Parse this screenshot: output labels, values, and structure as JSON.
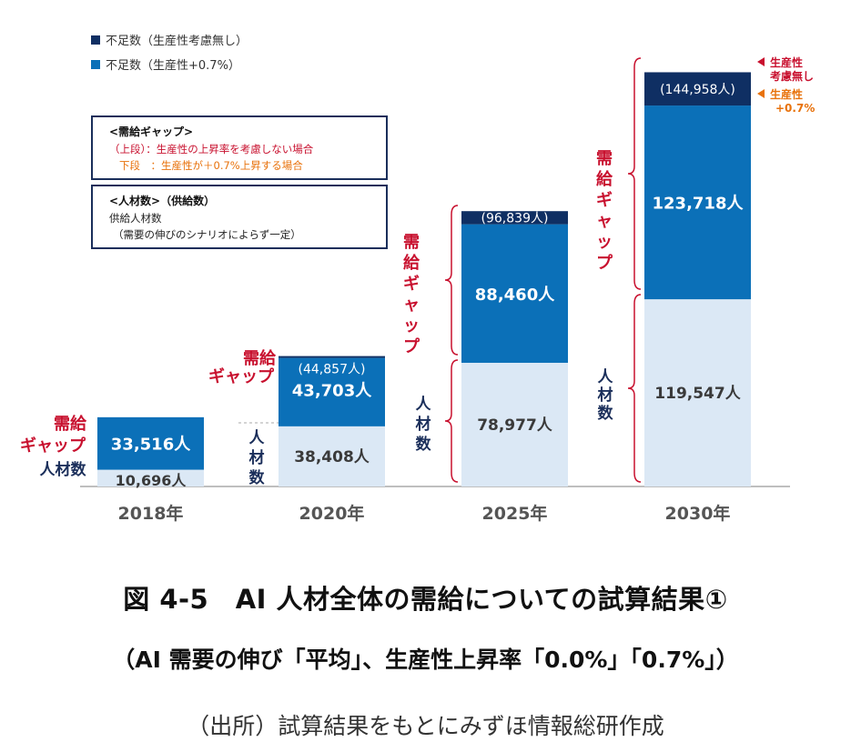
{
  "chart_data": {
    "type": "bar",
    "stacked": true,
    "categories": [
      "2018年",
      "2020年",
      "2025年",
      "2030年"
    ],
    "series": [
      {
        "name": "人材数",
        "values": [
          10696,
          38408,
          78977,
          119547
        ],
        "labels": [
          "10,696人",
          "38,408人",
          "78,977人",
          "119,547人"
        ]
      },
      {
        "name": "不足数（生産性+0.7%）",
        "values": [
          33516,
          43703,
          88460,
          123718
        ],
        "labels": [
          "33,516人",
          "43,703人",
          "88,460人",
          "123,718人"
        ]
      },
      {
        "name": "不足数（生産性考慮無し）",
        "values": [
          null,
          1154,
          8379,
          21240
        ],
        "labels": [
          "",
          "(44,857人)",
          "(96,839人)",
          "(144,958人)"
        ]
      }
    ],
    "colors": {
      "supply": "#dbe8f5",
      "gap": "#0b70b8",
      "gap_extra": "#0f2f63",
      "gap_text": "#c8102e",
      "supply_text": "#1a2e5a",
      "orange": "#e8720c"
    },
    "legend": {
      "position": "top-left",
      "items": [
        {
          "label": "不足数（生産性考慮無し）",
          "color": "#0f2f63"
        },
        {
          "label": "不足数（生産性+0.7%）",
          "color": "#0b70b8"
        }
      ]
    },
    "notes": {
      "gap_title": "<需給ギャップ>",
      "gap_line1": "（上段）：生産性の上昇率を考慮しない場合",
      "gap_line2": "下段　：生産性が＋0.7%上昇する場合",
      "supply_title": "<人材数>（供給数）",
      "supply_line1": "供給人材数",
      "supply_line2": "（需要の伸びのシナリオによらず一定）"
    },
    "annotations": {
      "gap": "需給ギャップ",
      "supply": "人材数",
      "arrow_upper_1": "生産性",
      "arrow_upper_2": "考慮無し",
      "arrow_lower_1": "生産性",
      "arrow_lower_2": "+0.7%"
    }
  },
  "figure": {
    "title": "図 4-5　AI 人材全体の需給についての試算結果①",
    "subtitle": "（AI 需要の伸び「平均」、生産性上昇率「0.0%」「0.7%」）",
    "source": "（出所）試算結果をもとにみずほ情報総研作成"
  }
}
